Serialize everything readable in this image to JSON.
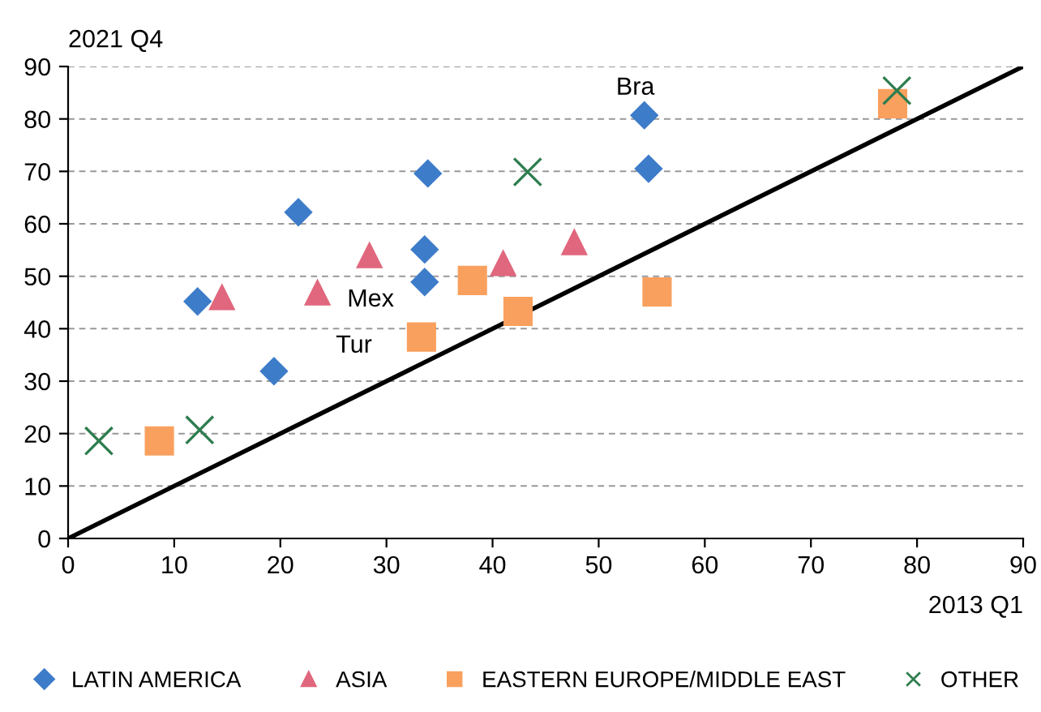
{
  "chart_data": {
    "type": "scatter",
    "ylabel": "2021 Q4",
    "xlabel": "2013 Q1",
    "xlim": [
      0,
      90
    ],
    "ylim": [
      0,
      90
    ],
    "xticks": [
      0,
      10,
      20,
      30,
      40,
      50,
      60,
      70,
      80,
      90
    ],
    "yticks": [
      0,
      10,
      20,
      30,
      40,
      50,
      60,
      70,
      80,
      90
    ],
    "grid": "y",
    "legend": "bottom",
    "series": [
      {
        "name": "LATIN AMERICA",
        "color": "#3d7cc9",
        "marker": "diamond",
        "x": [
          12.2,
          21.7,
          19.4,
          33.9,
          33.6,
          33.6,
          54.3,
          54.7
        ],
        "values": [
          45.2,
          62.2,
          31.9,
          69.6,
          55.1,
          48.9,
          80.7,
          70.5
        ]
      },
      {
        "name": "ASIA",
        "color": "#e0677d",
        "marker": "triangle",
        "x": [
          14.5,
          23.5,
          28.4,
          41.0,
          47.7
        ],
        "values": [
          46.1,
          47.0,
          54.1,
          52.6,
          56.6
        ]
      },
      {
        "name": "EASTERN EUROPE/MIDDLE EAST",
        "color": "#f9a05e",
        "marker": "square",
        "x": [
          8.6,
          33.3,
          38.1,
          42.4,
          55.5,
          77.7
        ],
        "values": [
          18.6,
          38.4,
          49.2,
          43.3,
          47.0,
          82.9
        ]
      },
      {
        "name": "OTHER",
        "color": "#2e7d4f",
        "marker": "cross",
        "x": [
          2.9,
          12.4,
          43.3,
          78.1
        ],
        "values": [
          18.6,
          20.7,
          69.9,
          85.4
        ]
      },
      {
        "type": "line",
        "color": "#000000",
        "x": [
          0,
          90
        ],
        "values": [
          0,
          90
        ]
      }
    ],
    "annotations": [
      {
        "text": "Bra",
        "x": 54.3,
        "y": 80.7
      },
      {
        "text": "Mex",
        "x": 33.6,
        "y": 48.9
      },
      {
        "text": "Tur",
        "x": 33.3,
        "y": 38.4
      }
    ]
  }
}
